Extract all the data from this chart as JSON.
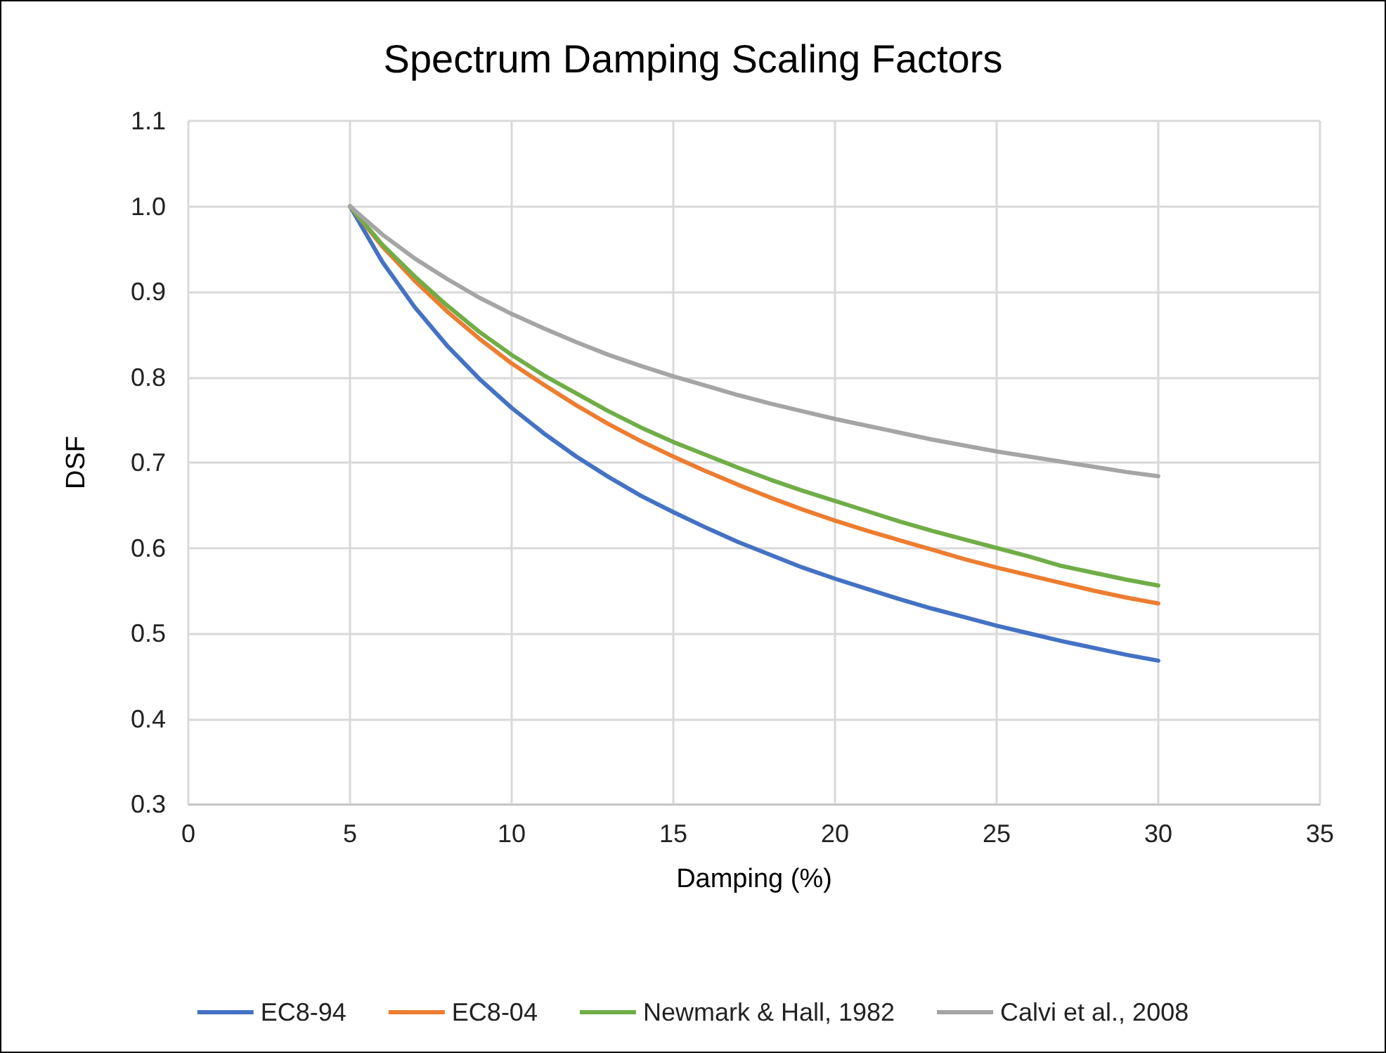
{
  "chart_data": {
    "type": "line",
    "title": "Spectrum Damping Scaling Factors",
    "xlabel": "Damping (%)",
    "ylabel": "DSF",
    "x": [
      5,
      6,
      7,
      8,
      9,
      10,
      11,
      12,
      13,
      14,
      15,
      16,
      17,
      18,
      19,
      20,
      21,
      22,
      23,
      24,
      25,
      26,
      27,
      28,
      29,
      30
    ],
    "series": [
      {
        "name": "EC8-94",
        "color": "#4472c4",
        "values": [
          1,
          0.935,
          0.882,
          0.837,
          0.798,
          0.764,
          0.734,
          0.707,
          0.683,
          0.661,
          0.642,
          0.624,
          0.607,
          0.592,
          0.577,
          0.564,
          0.552,
          0.54,
          0.529,
          0.519,
          0.509,
          0.5,
          0.491,
          0.483,
          0.475,
          0.468
        ]
      },
      {
        "name": "EC8-04",
        "color": "#ed7d31",
        "values": [
          1,
          0.953,
          0.913,
          0.877,
          0.845,
          0.816,
          0.791,
          0.767,
          0.745,
          0.725,
          0.707,
          0.69,
          0.674,
          0.659,
          0.645,
          0.632,
          0.62,
          0.609,
          0.598,
          0.587,
          0.577,
          0.568,
          0.559,
          0.55,
          0.542,
          0.535
        ]
      },
      {
        "name": "Newmark & Hall, 1982",
        "color": "#70ad47",
        "values": [
          1,
          0.955,
          0.918,
          0.884,
          0.853,
          0.826,
          0.802,
          0.781,
          0.76,
          0.741,
          0.724,
          0.709,
          0.694,
          0.68,
          0.667,
          0.655,
          0.643,
          0.631,
          0.62,
          0.61,
          0.6,
          0.59,
          0.579,
          0.571,
          0.563,
          0.556
        ]
      },
      {
        "name": "Calvi et al., 2008",
        "color": "#a5a5a5",
        "values": [
          1,
          0.967,
          0.939,
          0.915,
          0.893,
          0.874,
          0.857,
          0.841,
          0.826,
          0.813,
          0.801,
          0.79,
          0.779,
          0.769,
          0.76,
          0.751,
          0.743,
          0.735,
          0.727,
          0.72,
          0.713,
          0.707,
          0.701,
          0.695,
          0.689,
          0.684
        ]
      }
    ],
    "xlim": [
      0,
      35
    ],
    "xticks": [
      0,
      5,
      10,
      15,
      20,
      25,
      30,
      35
    ],
    "ylim": [
      0.3,
      1.1
    ],
    "yticks": [
      0.3,
      0.4,
      0.5,
      0.6,
      0.7,
      0.8,
      0.9,
      {
        "value": 1,
        "label": "1.0"
      },
      1.1
    ],
    "grid": true,
    "legend": "bottom",
    "marker": "none",
    "line_style": "solid"
  }
}
